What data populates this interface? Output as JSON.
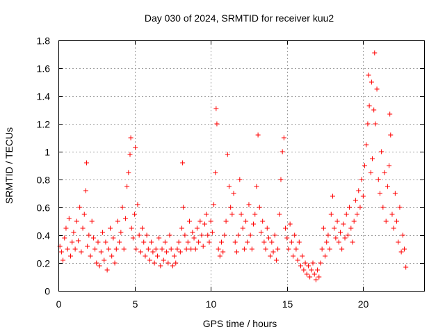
{
  "chart_data": {
    "type": "scatter",
    "title": "Day 030 of 2024, SRMTID for receiver kuu2",
    "xlabel": "GPS time / hours",
    "ylabel": "SRMTID / TECUs",
    "xlim": [
      0,
      24
    ],
    "ylim": [
      0,
      1.8
    ],
    "xticks": [
      0,
      5,
      10,
      15,
      20
    ],
    "yticks": [
      0,
      0.2,
      0.4,
      0.6,
      0.8,
      1,
      1.2,
      1.4,
      1.6,
      1.8
    ],
    "ytick_labels": [
      "0",
      "0.2",
      "0.4",
      "0.6",
      "0.8",
      "1",
      "1.2",
      "1.4",
      "1.6",
      "1.8"
    ],
    "grid": true,
    "marker": "+",
    "color": "#ff0000",
    "series": [
      {
        "name": "SRMTID",
        "points": [
          [
            0.1,
            0.32
          ],
          [
            0.2,
            0.28
          ],
          [
            0.3,
            0.22
          ],
          [
            0.4,
            0.38
          ],
          [
            0.5,
            0.45
          ],
          [
            0.6,
            0.3
          ],
          [
            0.7,
            0.52
          ],
          [
            0.8,
            0.25
          ],
          [
            0.9,
            0.35
          ],
          [
            1.0,
            0.42
          ],
          [
            1.1,
            0.3
          ],
          [
            1.2,
            0.5
          ],
          [
            1.3,
            0.36
          ],
          [
            1.4,
            0.6
          ],
          [
            1.5,
            0.28
          ],
          [
            1.6,
            0.45
          ],
          [
            1.7,
            0.55
          ],
          [
            1.8,
            0.72
          ],
          [
            1.85,
            0.92
          ],
          [
            1.9,
            0.32
          ],
          [
            2.0,
            0.4
          ],
          [
            2.1,
            0.25
          ],
          [
            2.2,
            0.5
          ],
          [
            2.3,
            0.38
          ],
          [
            2.4,
            0.3
          ],
          [
            2.5,
            0.2
          ],
          [
            2.6,
            0.35
          ],
          [
            2.7,
            0.18
          ],
          [
            2.8,
            0.28
          ],
          [
            2.9,
            0.42
          ],
          [
            3.0,
            0.22
          ],
          [
            3.1,
            0.35
          ],
          [
            3.2,
            0.15
          ],
          [
            3.3,
            0.3
          ],
          [
            3.4,
            0.45
          ],
          [
            3.5,
            0.25
          ],
          [
            3.6,
            0.38
          ],
          [
            3.7,
            0.2
          ],
          [
            3.8,
            0.3
          ],
          [
            3.9,
            0.5
          ],
          [
            4.0,
            0.35
          ],
          [
            4.1,
            0.42
          ],
          [
            4.2,
            0.6
          ],
          [
            4.3,
            0.3
          ],
          [
            4.4,
            0.52
          ],
          [
            4.5,
            0.75
          ],
          [
            4.6,
            0.85
          ],
          [
            4.7,
            0.98
          ],
          [
            4.75,
            1.1
          ],
          [
            4.8,
            0.45
          ],
          [
            4.9,
            0.38
          ],
          [
            5.0,
            0.55
          ],
          [
            5.05,
            1.03
          ],
          [
            5.1,
            0.3
          ],
          [
            5.2,
            0.62
          ],
          [
            5.3,
            0.4
          ],
          [
            5.4,
            0.28
          ],
          [
            5.5,
            0.45
          ],
          [
            5.6,
            0.35
          ],
          [
            5.7,
            0.25
          ],
          [
            5.8,
            0.4
          ],
          [
            5.9,
            0.3
          ],
          [
            6.0,
            0.22
          ],
          [
            6.1,
            0.35
          ],
          [
            6.2,
            0.28
          ],
          [
            6.3,
            0.2
          ],
          [
            6.4,
            0.3
          ],
          [
            6.5,
            0.25
          ],
          [
            6.6,
            0.38
          ],
          [
            6.7,
            0.18
          ],
          [
            6.8,
            0.3
          ],
          [
            6.9,
            0.22
          ],
          [
            7.0,
            0.35
          ],
          [
            7.1,
            0.28
          ],
          [
            7.2,
            0.2
          ],
          [
            7.3,
            0.4
          ],
          [
            7.4,
            0.3
          ],
          [
            7.5,
            0.18
          ],
          [
            7.6,
            0.25
          ],
          [
            7.7,
            0.2
          ],
          [
            7.8,
            0.3
          ],
          [
            7.9,
            0.35
          ],
          [
            8.0,
            0.28
          ],
          [
            8.1,
            0.45
          ],
          [
            8.15,
            0.92
          ],
          [
            8.2,
            0.6
          ],
          [
            8.3,
            0.4
          ],
          [
            8.4,
            0.3
          ],
          [
            8.5,
            0.35
          ],
          [
            8.6,
            0.5
          ],
          [
            8.7,
            0.3
          ],
          [
            8.8,
            0.42
          ],
          [
            8.9,
            0.38
          ],
          [
            9.0,
            0.3
          ],
          [
            9.1,
            0.45
          ],
          [
            9.2,
            0.35
          ],
          [
            9.3,
            0.5
          ],
          [
            9.4,
            0.4
          ],
          [
            9.5,
            0.32
          ],
          [
            9.6,
            0.48
          ],
          [
            9.7,
            0.55
          ],
          [
            9.8,
            0.4
          ],
          [
            9.9,
            0.35
          ],
          [
            10.0,
            0.5
          ],
          [
            10.1,
            0.42
          ],
          [
            10.2,
            0.62
          ],
          [
            10.3,
            0.85
          ],
          [
            10.35,
            1.31
          ],
          [
            10.4,
            1.2
          ],
          [
            10.5,
            0.3
          ],
          [
            10.6,
            0.25
          ],
          [
            10.7,
            0.35
          ],
          [
            10.8,
            0.28
          ],
          [
            10.9,
            0.4
          ],
          [
            11.0,
            0.5
          ],
          [
            11.1,
            0.98
          ],
          [
            11.2,
            0.75
          ],
          [
            11.3,
            0.6
          ],
          [
            11.4,
            0.55
          ],
          [
            11.5,
            0.7
          ],
          [
            11.6,
            0.35
          ],
          [
            11.7,
            0.28
          ],
          [
            11.8,
            0.4
          ],
          [
            11.9,
            0.8
          ],
          [
            12.0,
            0.55
          ],
          [
            12.1,
            0.45
          ],
          [
            12.2,
            0.3
          ],
          [
            12.3,
            0.5
          ],
          [
            12.4,
            0.35
          ],
          [
            12.5,
            0.62
          ],
          [
            12.6,
            0.4
          ],
          [
            12.7,
            0.3
          ],
          [
            12.8,
            0.48
          ],
          [
            12.9,
            0.55
          ],
          [
            13.0,
            0.75
          ],
          [
            13.1,
            1.12
          ],
          [
            13.2,
            0.6
          ],
          [
            13.3,
            0.42
          ],
          [
            13.4,
            0.5
          ],
          [
            13.5,
            0.35
          ],
          [
            13.6,
            0.3
          ],
          [
            13.7,
            0.45
          ],
          [
            13.8,
            0.38
          ],
          [
            13.9,
            0.25
          ],
          [
            14.0,
            0.35
          ],
          [
            14.1,
            0.28
          ],
          [
            14.2,
            0.4
          ],
          [
            14.3,
            0.22
          ],
          [
            14.4,
            0.3
          ],
          [
            14.5,
            0.55
          ],
          [
            14.6,
            0.8
          ],
          [
            14.7,
            1.0
          ],
          [
            14.8,
            1.1
          ],
          [
            14.9,
            0.45
          ],
          [
            15.0,
            0.38
          ],
          [
            15.1,
            0.3
          ],
          [
            15.2,
            0.48
          ],
          [
            15.3,
            0.35
          ],
          [
            15.4,
            0.25
          ],
          [
            15.5,
            0.4
          ],
          [
            15.6,
            0.3
          ],
          [
            15.7,
            0.22
          ],
          [
            15.8,
            0.35
          ],
          [
            15.9,
            0.18
          ],
          [
            16.0,
            0.25
          ],
          [
            16.1,
            0.15
          ],
          [
            16.2,
            0.2
          ],
          [
            16.3,
            0.12
          ],
          [
            16.4,
            0.18
          ],
          [
            16.5,
            0.1
          ],
          [
            16.6,
            0.15
          ],
          [
            16.7,
            0.2
          ],
          [
            16.8,
            0.12
          ],
          [
            16.9,
            0.08
          ],
          [
            17.0,
            0.15
          ],
          [
            17.1,
            0.1
          ],
          [
            17.2,
            0.2
          ],
          [
            17.3,
            0.3
          ],
          [
            17.4,
            0.45
          ],
          [
            17.5,
            0.25
          ],
          [
            17.6,
            0.35
          ],
          [
            17.7,
            0.4
          ],
          [
            17.8,
            0.3
          ],
          [
            17.9,
            0.55
          ],
          [
            18.0,
            0.68
          ],
          [
            18.1,
            0.45
          ],
          [
            18.2,
            0.38
          ],
          [
            18.3,
            0.5
          ],
          [
            18.4,
            0.35
          ],
          [
            18.5,
            0.42
          ],
          [
            18.6,
            0.3
          ],
          [
            18.7,
            0.48
          ],
          [
            18.8,
            0.38
          ],
          [
            18.9,
            0.55
          ],
          [
            19.0,
            0.4
          ],
          [
            19.1,
            0.6
          ],
          [
            19.2,
            0.45
          ],
          [
            19.3,
            0.35
          ],
          [
            19.4,
            0.5
          ],
          [
            19.5,
            0.65
          ],
          [
            19.6,
            0.55
          ],
          [
            19.7,
            0.72
          ],
          [
            19.8,
            0.6
          ],
          [
            19.9,
            0.8
          ],
          [
            20.0,
            0.68
          ],
          [
            20.1,
            0.9
          ],
          [
            20.2,
            1.05
          ],
          [
            20.3,
            1.2
          ],
          [
            20.35,
            1.55
          ],
          [
            20.4,
            1.33
          ],
          [
            20.5,
            0.85
          ],
          [
            20.55,
            1.5
          ],
          [
            20.6,
            0.95
          ],
          [
            20.7,
            1.3
          ],
          [
            20.75,
            1.71
          ],
          [
            20.8,
            1.2
          ],
          [
            20.9,
            1.45
          ],
          [
            21.0,
            0.8
          ],
          [
            21.1,
            0.7
          ],
          [
            21.2,
            1.0
          ],
          [
            21.3,
            0.6
          ],
          [
            21.4,
            0.85
          ],
          [
            21.5,
            0.5
          ],
          [
            21.6,
            0.75
          ],
          [
            21.7,
            0.9
          ],
          [
            21.75,
            1.27
          ],
          [
            21.8,
            1.12
          ],
          [
            21.9,
            0.55
          ],
          [
            22.0,
            0.45
          ],
          [
            22.1,
            0.7
          ],
          [
            22.2,
            0.5
          ],
          [
            22.3,
            0.35
          ],
          [
            22.4,
            0.6
          ],
          [
            22.5,
            0.28
          ],
          [
            22.6,
            0.4
          ],
          [
            22.7,
            0.3
          ],
          [
            22.8,
            0.17
          ]
        ]
      }
    ]
  }
}
